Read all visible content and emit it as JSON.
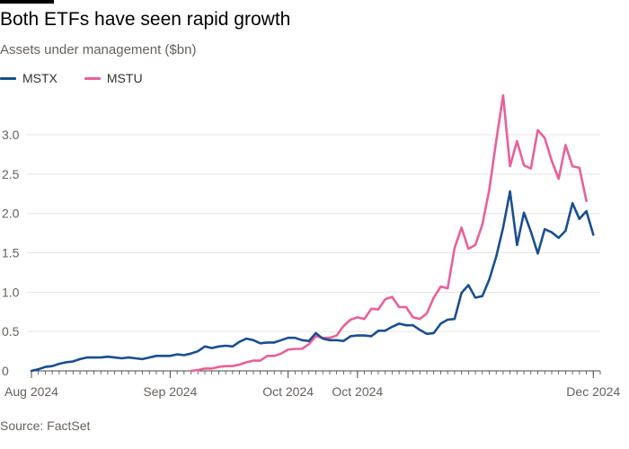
{
  "title": "Both ETFs have seen rapid growth",
  "subtitle": "Assets under management ($bn)",
  "source": "Source: FactSet",
  "colors": {
    "MSTX": "#1a4f8f",
    "MSTU": "#e8609a",
    "grid": "#e6e4e1",
    "axis": "#4d4845"
  },
  "chart_data": {
    "type": "line",
    "title": "Both ETFs have seen rapid growth",
    "ylabel": "Assets under management ($bn)",
    "xlabel": "",
    "ylim": [
      0,
      3.4
    ],
    "yticks": [
      "0",
      "0.5",
      "1.0",
      "1.5",
      "2.0",
      "2.5",
      "3.0"
    ],
    "ytick_values": [
      0,
      0.5,
      1.0,
      1.5,
      2.0,
      2.5,
      3.0
    ],
    "grid": true,
    "legend_position": "top-left",
    "x_range_days": [
      0,
      82
    ],
    "xtick_labels": [
      {
        "label": "Aug 2024",
        "day": 0
      },
      {
        "label": "Sep 2024",
        "day": 20
      },
      {
        "label": "Oct 2024",
        "day": 37
      },
      {
        "label": "Oct 2024",
        "day": 47
      },
      {
        "label": "Dec 2024",
        "day": 81
      }
    ],
    "series": [
      {
        "name": "MSTX",
        "points": [
          [
            0,
            0.0
          ],
          [
            1,
            0.02
          ],
          [
            2,
            0.05
          ],
          [
            3,
            0.06
          ],
          [
            4,
            0.09
          ],
          [
            5,
            0.11
          ],
          [
            6,
            0.12
          ],
          [
            7,
            0.15
          ],
          [
            8,
            0.17
          ],
          [
            9,
            0.17
          ],
          [
            10,
            0.17
          ],
          [
            11,
            0.18
          ],
          [
            12,
            0.17
          ],
          [
            13,
            0.16
          ],
          [
            14,
            0.17
          ],
          [
            15,
            0.16
          ],
          [
            16,
            0.15
          ],
          [
            17,
            0.17
          ],
          [
            18,
            0.19
          ],
          [
            19,
            0.19
          ],
          [
            20,
            0.19
          ],
          [
            21,
            0.21
          ],
          [
            22,
            0.2
          ],
          [
            23,
            0.22
          ],
          [
            24,
            0.25
          ],
          [
            25,
            0.31
          ],
          [
            26,
            0.29
          ],
          [
            27,
            0.31
          ],
          [
            28,
            0.32
          ],
          [
            29,
            0.31
          ],
          [
            30,
            0.37
          ],
          [
            31,
            0.41
          ],
          [
            32,
            0.39
          ],
          [
            33,
            0.35
          ],
          [
            34,
            0.36
          ],
          [
            35,
            0.36
          ],
          [
            36,
            0.39
          ],
          [
            37,
            0.42
          ],
          [
            38,
            0.42
          ],
          [
            39,
            0.39
          ],
          [
            40,
            0.38
          ],
          [
            41,
            0.48
          ],
          [
            42,
            0.41
          ],
          [
            43,
            0.39
          ],
          [
            44,
            0.39
          ],
          [
            45,
            0.38
          ],
          [
            46,
            0.44
          ],
          [
            47,
            0.45
          ],
          [
            48,
            0.45
          ],
          [
            49,
            0.44
          ],
          [
            50,
            0.51
          ],
          [
            51,
            0.51
          ],
          [
            52,
            0.56
          ],
          [
            53,
            0.6
          ],
          [
            54,
            0.58
          ],
          [
            55,
            0.58
          ],
          [
            56,
            0.52
          ],
          [
            57,
            0.47
          ],
          [
            58,
            0.48
          ],
          [
            59,
            0.6
          ],
          [
            60,
            0.65
          ],
          [
            61,
            0.66
          ],
          [
            62,
            0.99
          ],
          [
            63,
            1.09
          ],
          [
            64,
            0.93
          ],
          [
            65,
            0.95
          ],
          [
            66,
            1.16
          ],
          [
            67,
            1.45
          ],
          [
            68,
            1.82
          ],
          [
            69,
            2.28
          ],
          [
            70,
            1.6
          ],
          [
            71,
            2.01
          ],
          [
            72,
            1.77
          ],
          [
            73,
            1.49
          ],
          [
            74,
            1.8
          ],
          [
            75,
            1.76
          ],
          [
            76,
            1.69
          ],
          [
            77,
            1.78
          ],
          [
            78,
            2.13
          ],
          [
            79,
            1.93
          ],
          [
            80,
            2.03
          ],
          [
            81,
            1.73
          ]
        ]
      },
      {
        "name": "MSTU",
        "points": [
          [
            23,
            0.0
          ],
          [
            24,
            0.01
          ],
          [
            25,
            0.03
          ],
          [
            26,
            0.03
          ],
          [
            27,
            0.05
          ],
          [
            28,
            0.06
          ],
          [
            29,
            0.06
          ],
          [
            30,
            0.08
          ],
          [
            31,
            0.11
          ],
          [
            32,
            0.13
          ],
          [
            33,
            0.13
          ],
          [
            34,
            0.19
          ],
          [
            35,
            0.19
          ],
          [
            36,
            0.22
          ],
          [
            37,
            0.27
          ],
          [
            38,
            0.28
          ],
          [
            39,
            0.28
          ],
          [
            40,
            0.34
          ],
          [
            41,
            0.44
          ],
          [
            42,
            0.42
          ],
          [
            43,
            0.42
          ],
          [
            44,
            0.45
          ],
          [
            45,
            0.57
          ],
          [
            46,
            0.65
          ],
          [
            47,
            0.68
          ],
          [
            48,
            0.66
          ],
          [
            49,
            0.79
          ],
          [
            50,
            0.78
          ],
          [
            51,
            0.91
          ],
          [
            52,
            0.94
          ],
          [
            53,
            0.81
          ],
          [
            54,
            0.81
          ],
          [
            55,
            0.68
          ],
          [
            56,
            0.66
          ],
          [
            57,
            0.73
          ],
          [
            58,
            0.93
          ],
          [
            59,
            1.07
          ],
          [
            60,
            1.05
          ],
          [
            61,
            1.56
          ],
          [
            62,
            1.82
          ],
          [
            63,
            1.55
          ],
          [
            64,
            1.6
          ],
          [
            65,
            1.86
          ],
          [
            66,
            2.3
          ],
          [
            67,
            2.92
          ],
          [
            68,
            3.5
          ],
          [
            69,
            2.6
          ],
          [
            70,
            2.92
          ],
          [
            71,
            2.61
          ],
          [
            72,
            2.57
          ],
          [
            73,
            3.06
          ],
          [
            74,
            2.96
          ],
          [
            75,
            2.67
          ],
          [
            76,
            2.44
          ],
          [
            77,
            2.87
          ],
          [
            78,
            2.6
          ],
          [
            79,
            2.58
          ],
          [
            80,
            2.16
          ]
        ]
      }
    ]
  }
}
